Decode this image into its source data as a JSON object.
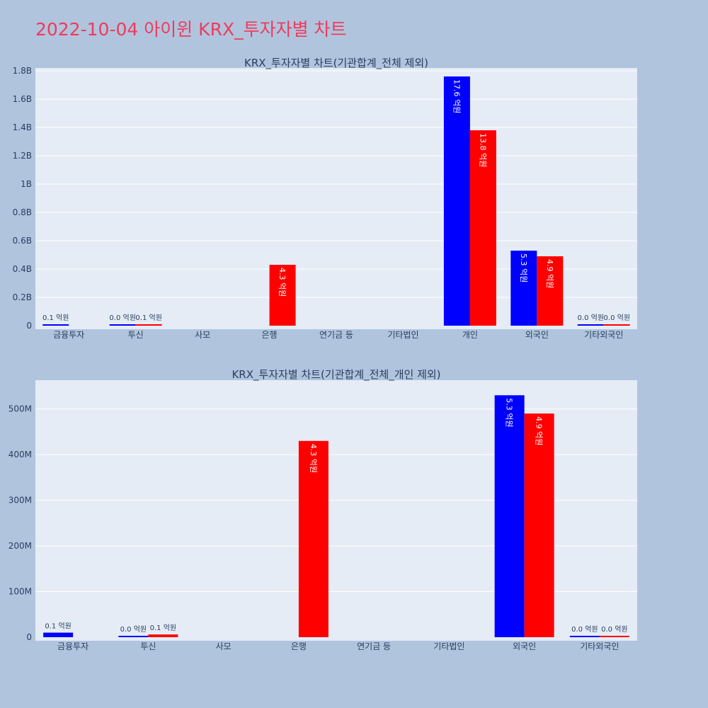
{
  "page": {
    "title": "2022-10-04 아이윈 KRX_투자자별 차트"
  },
  "colors": {
    "background": "#b0c4de",
    "plot_bg": "#e5ecf6",
    "series_a": "#0000ff",
    "series_b": "#ff0000",
    "title": "#ef3b5b"
  },
  "chart_data": [
    {
      "type": "bar",
      "title": "KRX_투자자별 차트(기관합계_전체 제외)",
      "categories": [
        "금융투자",
        "투신",
        "사모",
        "은행",
        "연기금 등",
        "기타법인",
        "개인",
        "외국인",
        "기타외국인"
      ],
      "ylim": [
        0,
        1820000000
      ],
      "yticks": [
        0,
        200000000,
        400000000,
        600000000,
        800000000,
        1000000000,
        1200000000,
        1400000000,
        1600000000,
        1800000000
      ],
      "ytick_labels": [
        "0",
        "0.2B",
        "0.4B",
        "0.6B",
        "0.8B",
        "1B",
        "1.2B",
        "1.4B",
        "1.6B",
        "1.8B"
      ],
      "grid": true,
      "series": [
        {
          "color": "#0000ff",
          "values": [
            10000000,
            2000000,
            null,
            null,
            null,
            null,
            1760000000,
            530000000,
            500000
          ],
          "labels": [
            "0.1 억원",
            "0.0 억원",
            "",
            "",
            "",
            "",
            "17.6 억원",
            "5.3 억원",
            "0.0 억원"
          ]
        },
        {
          "color": "#ff0000",
          "values": [
            null,
            6000000,
            null,
            430000000,
            null,
            null,
            1380000000,
            490000000,
            500000
          ],
          "labels": [
            "",
            "0.1 억원",
            "",
            "4.3 억원",
            "",
            "",
            "13.8 억원",
            "4.9 억원",
            "0.0 억원"
          ]
        }
      ]
    },
    {
      "type": "bar",
      "title": "KRX_투자자별 차트(기관합계_전체_개인 제외)",
      "categories": [
        "금융투자",
        "투신",
        "사모",
        "은행",
        "연기금 등",
        "기타법인",
        "외국인",
        "기타외국인"
      ],
      "ylim": [
        0,
        563000000
      ],
      "yticks": [
        0,
        100000000,
        200000000,
        300000000,
        400000000,
        500000000
      ],
      "ytick_labels": [
        "0",
        "100M",
        "200M",
        "300M",
        "400M",
        "500M"
      ],
      "grid": true,
      "series": [
        {
          "color": "#0000ff",
          "values": [
            10000000,
            2000000,
            null,
            null,
            null,
            null,
            530000000,
            500000
          ],
          "labels": [
            "0.1 억원",
            "0.0 억원",
            "",
            "",
            "",
            "",
            "5.3 억원",
            "0.0 억원"
          ]
        },
        {
          "color": "#ff0000",
          "values": [
            null,
            6000000,
            null,
            430000000,
            null,
            null,
            490000000,
            500000
          ],
          "labels": [
            "",
            "0.1 억원",
            "",
            "4.3 억원",
            "",
            "",
            "4.9 억원",
            "0.0 억원"
          ]
        }
      ]
    }
  ]
}
